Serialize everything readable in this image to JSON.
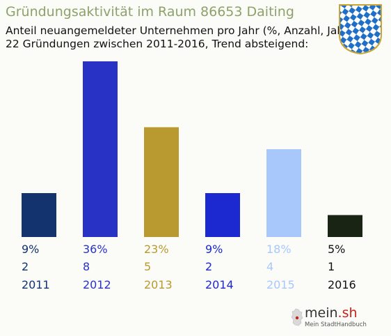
{
  "header": {
    "title": "Gründungsaktivität im Raum 86653 Daiting",
    "subtitle_line1": "Anteil neuangemeldeter Unternehmen pro Jahr (%, Anzahl, Jahr)",
    "subtitle_line2": "22 Gründungen zwischen 2011-2016, Trend absteigend:"
  },
  "crest": {
    "icon": "bavarian-lozenge-crest-icon",
    "colors": {
      "blue": "#1f6fc8",
      "white": "#ffffff",
      "frame": "#c9a537"
    }
  },
  "chart_data": {
    "type": "bar",
    "categories": [
      "2011",
      "2012",
      "2013",
      "2014",
      "2015",
      "2016"
    ],
    "percent_labels": [
      "9%",
      "36%",
      "23%",
      "9%",
      "18%",
      "5%"
    ],
    "count_labels": [
      "2",
      "8",
      "5",
      "2",
      "4",
      "1"
    ],
    "values": [
      2,
      8,
      5,
      2,
      4,
      1
    ],
    "colors": [
      "#12336e",
      "#2832c4",
      "#b89a31",
      "#1c28d0",
      "#a8c8fc",
      "#1a2414"
    ],
    "label_colors": [
      "#12336e",
      "#2832c4",
      "#b89a31",
      "#1c28d0",
      "#a8c8fc",
      "#111111"
    ],
    "grid": false,
    "legend": "none"
  },
  "footer": {
    "logo_main": "mein",
    "logo_tld": ".sh",
    "logo_sub": "Mein StadtHandbuch"
  }
}
